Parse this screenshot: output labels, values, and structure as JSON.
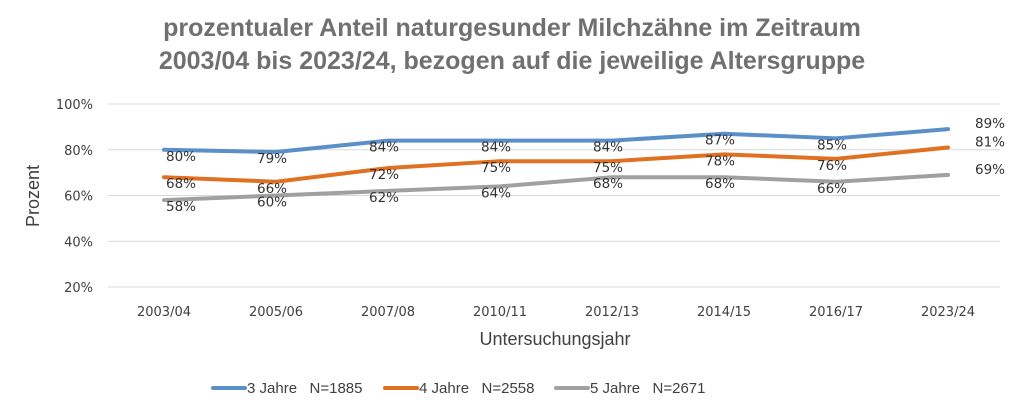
{
  "chart_data": {
    "type": "line",
    "title_lines": [
      "prozentualer Anteil naturgesunder Milchzähne im Zeitraum",
      "2003/04 bis 2023/24, bezogen auf die jeweilige Altersgruppe"
    ],
    "xlabel": "Untersuchungsjahr",
    "ylabel": "Prozent",
    "categories": [
      "2003/04",
      "2005/06",
      "2007/08",
      "2010/11",
      "2012/13",
      "2014/15",
      "2016/17",
      "2023/24"
    ],
    "ylim": [
      20,
      100
    ],
    "yticks": [
      20,
      40,
      60,
      80,
      100
    ],
    "ytick_labels": [
      "20%",
      "40%",
      "60%",
      "80%",
      "100%"
    ],
    "grid": true,
    "legend_position": "bottom",
    "series": [
      {
        "name": "3 Jahre   N=1885",
        "color": "#5b8fc9",
        "values": [
          80,
          79,
          84,
          84,
          84,
          87,
          85,
          89
        ]
      },
      {
        "name": "4 Jahre   N=2558",
        "color": "#e07022",
        "values": [
          68,
          66,
          72,
          75,
          75,
          78,
          76,
          81
        ]
      },
      {
        "name": "5 Jahre   N=2671",
        "color": "#a0a0a0",
        "values": [
          58,
          60,
          62,
          64,
          68,
          68,
          66,
          69
        ]
      }
    ],
    "value_suffix": "%"
  }
}
